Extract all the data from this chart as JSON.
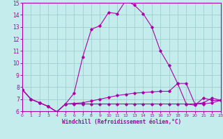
{
  "xlabel": "Windchill (Refroidissement éolien,°C)",
  "bg_color": "#c5eced",
  "line_color": "#aa00aa",
  "grid_color": "#9fcfcf",
  "xlim": [
    0,
    23
  ],
  "ylim": [
    6,
    15
  ],
  "yticks": [
    6,
    7,
    8,
    9,
    10,
    11,
    12,
    13,
    14,
    15
  ],
  "xticks": [
    0,
    1,
    2,
    3,
    4,
    5,
    6,
    7,
    8,
    9,
    10,
    11,
    12,
    13,
    14,
    15,
    16,
    17,
    18,
    19,
    20,
    21,
    22,
    23
  ],
  "series1_x": [
    0,
    1,
    2,
    3,
    4,
    5,
    6,
    7,
    8,
    9,
    10,
    11,
    12,
    13,
    14,
    15,
    16,
    17,
    18,
    19,
    20,
    21,
    22,
    23
  ],
  "series1_y": [
    7.8,
    7.0,
    6.7,
    6.4,
    5.95,
    6.6,
    7.5,
    10.5,
    12.8,
    13.1,
    14.2,
    14.1,
    15.2,
    14.8,
    14.1,
    13.0,
    11.0,
    9.8,
    8.3,
    6.6,
    6.5,
    7.1,
    6.9,
    6.9
  ],
  "series2_x": [
    0,
    1,
    2,
    3,
    4,
    5,
    6,
    7,
    8,
    9,
    10,
    11,
    12,
    13,
    14,
    15,
    16,
    17,
    18,
    19,
    20,
    21,
    22,
    23
  ],
  "series2_y": [
    7.8,
    7.0,
    6.7,
    6.4,
    5.95,
    6.6,
    6.65,
    6.7,
    6.85,
    7.0,
    7.15,
    7.3,
    7.4,
    7.5,
    7.55,
    7.6,
    7.65,
    7.65,
    8.3,
    8.3,
    6.6,
    6.7,
    7.1,
    6.9
  ],
  "series3_x": [
    0,
    1,
    2,
    3,
    4,
    5,
    6,
    7,
    8,
    9,
    10,
    11,
    12,
    13,
    14,
    15,
    16,
    17,
    18,
    19,
    20,
    21,
    22,
    23
  ],
  "series3_y": [
    7.8,
    7.0,
    6.7,
    6.4,
    5.95,
    6.6,
    6.6,
    6.6,
    6.6,
    6.6,
    6.6,
    6.6,
    6.6,
    6.6,
    6.6,
    6.6,
    6.6,
    6.6,
    6.6,
    6.6,
    6.6,
    6.6,
    6.7,
    6.9
  ]
}
